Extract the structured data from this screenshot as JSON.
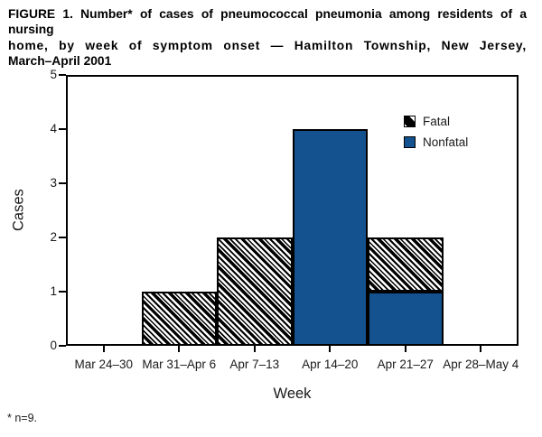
{
  "figure": {
    "title_line1": "FIGURE 1. Number* of cases of pneumococcal pneumonia among residents of a nursing",
    "title_line2": "home, by week of symptom onset — Hamilton Township, New Jersey,",
    "title_line3": "March–April 2001",
    "footnote": "* n=9."
  },
  "chart_data": {
    "type": "bar",
    "stacked": true,
    "title": "FIGURE 1. Number* of cases of pneumococcal pneumonia among residents of a nursing home, by week of symptom onset — Hamilton Township, New Jersey, March–April 2001",
    "categories": [
      "Mar 24–30",
      "Mar 31–Apr 6",
      "Apr 7–13",
      "Apr 14–20",
      "Apr 21–27",
      "Apr 28–May 4"
    ],
    "series": [
      {
        "name": "Fatal",
        "pattern": "black-diagonal-hatch",
        "values": [
          0,
          1,
          2,
          0,
          1,
          0
        ]
      },
      {
        "name": "Nonfatal",
        "color": "#14528f",
        "values": [
          0,
          0,
          0,
          4,
          1,
          0
        ]
      }
    ],
    "xlabel": "Week",
    "ylabel": "Cases",
    "ylim": [
      0,
      5
    ],
    "yticks": [
      0,
      1,
      2,
      3,
      4,
      5
    ],
    "grid": false,
    "legend_position": "top-right-inside",
    "bar_outline_color": "#000000",
    "footnote": "* n=9.",
    "total_cases": 9
  }
}
